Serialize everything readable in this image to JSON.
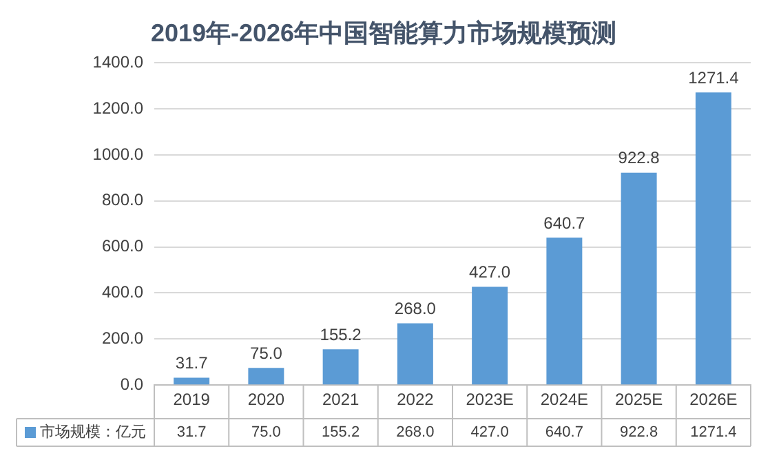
{
  "chart_data": {
    "type": "bar",
    "title": "2019年-2026年中国智能算力市场规模预测",
    "categories": [
      "2019",
      "2020",
      "2021",
      "2022",
      "2023E",
      "2024E",
      "2025E",
      "2026E"
    ],
    "series": [
      {
        "name": "市场规模：亿元",
        "color": "#5b9bd5",
        "values": [
          31.7,
          75.0,
          155.2,
          268.0,
          427.0,
          640.7,
          922.8,
          1271.4
        ],
        "value_labels": [
          "31.7",
          "75.0",
          "155.2",
          "268.0",
          "427.0",
          "640.7",
          "922.8",
          "1271.4"
        ]
      }
    ],
    "ylim": [
      0,
      1400
    ],
    "yticks": [
      {
        "value": 0,
        "label": "0.0"
      },
      {
        "value": 200,
        "label": "200.0"
      },
      {
        "value": 400,
        "label": "400.0"
      },
      {
        "value": 600,
        "label": "600.0"
      },
      {
        "value": 800,
        "label": "800.0"
      },
      {
        "value": 1000,
        "label": "1000.0"
      },
      {
        "value": 1200,
        "label": "1200.0"
      },
      {
        "value": 1400,
        "label": "1400.0"
      }
    ],
    "grid": "y",
    "legend": "bottom"
  }
}
